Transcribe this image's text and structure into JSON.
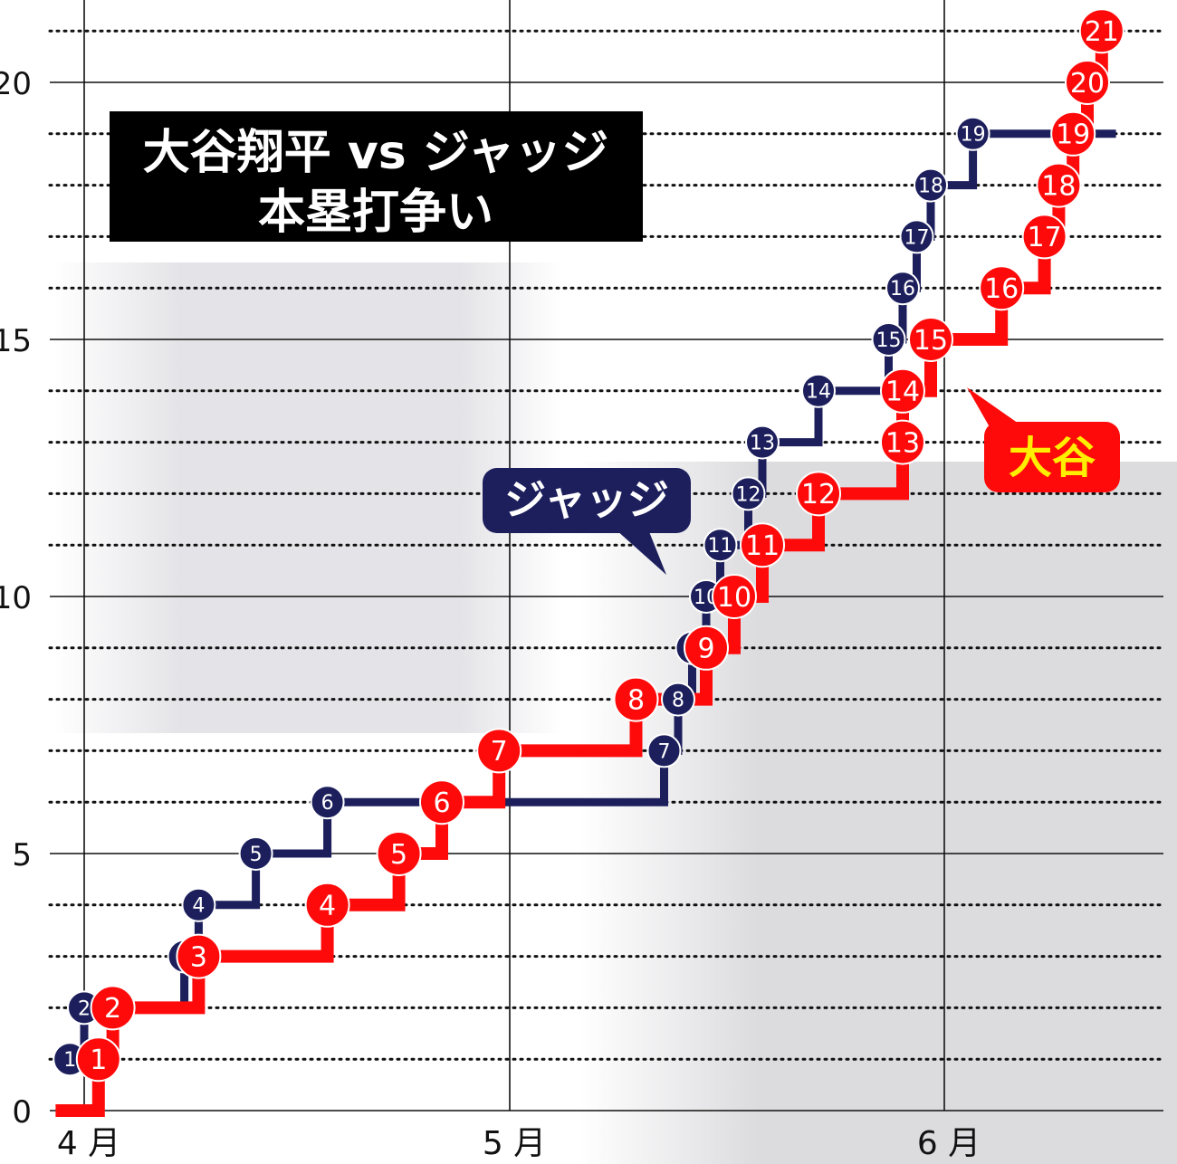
{
  "title": {
    "line1": "大谷翔平 vs ジャッジ",
    "line2": "本塁打争い"
  },
  "chart_data": {
    "type": "line",
    "step": true,
    "title": "大谷翔平 vs ジャッジ 本塁打争い",
    "xlabel": "",
    "ylabel": "",
    "x_ticks": [
      "4 月",
      "5 月",
      "6 月"
    ],
    "y_ticks": [
      "0",
      "5",
      "10",
      "15",
      "20"
    ],
    "ylim": [
      0,
      21
    ],
    "grid": "major solid, minor dotted",
    "series": [
      {
        "name": "ジャッジ",
        "color": "#1c1f5c",
        "points": [
          {
            "date": "03-31",
            "value": 1,
            "label": "1"
          },
          {
            "date": "04-01",
            "value": 2,
            "label": "2"
          },
          {
            "date": "04-08",
            "value": 3,
            "label": "3"
          },
          {
            "date": "04-09",
            "value": 4,
            "label": "4"
          },
          {
            "date": "04-13",
            "value": 5,
            "label": "5"
          },
          {
            "date": "04-18",
            "value": 6,
            "label": "6"
          },
          {
            "date": "05-12",
            "value": 7,
            "label": "7"
          },
          {
            "date": "05-13",
            "value": 8,
            "label": "8"
          },
          {
            "date": "05-14",
            "value": 9,
            "label": "9"
          },
          {
            "date": "05-15",
            "value": 10,
            "label": "10"
          },
          {
            "date": "05-16",
            "value": 11,
            "label": "11"
          },
          {
            "date": "05-18",
            "value": 12,
            "label": "12"
          },
          {
            "date": "05-19",
            "value": 13,
            "label": "13"
          },
          {
            "date": "05-23",
            "value": 14,
            "label": "14"
          },
          {
            "date": "05-28",
            "value": 15,
            "label": "15"
          },
          {
            "date": "05-29",
            "value": 16,
            "label": "16"
          },
          {
            "date": "05-30",
            "value": 17,
            "label": "17"
          },
          {
            "date": "05-31",
            "value": 18,
            "label": "18"
          },
          {
            "date": "06-03",
            "value": 19,
            "label": "19"
          },
          {
            "date": "06-13",
            "value": 19,
            "label": ""
          }
        ]
      },
      {
        "name": "大谷",
        "color": "#ff0a0a",
        "points": [
          {
            "date": "03-30",
            "value": 0,
            "label": ""
          },
          {
            "date": "04-02",
            "value": 1,
            "label": "1"
          },
          {
            "date": "04-03",
            "value": 2,
            "label": "2"
          },
          {
            "date": "04-09",
            "value": 3,
            "label": "3"
          },
          {
            "date": "04-18",
            "value": 4,
            "label": "4"
          },
          {
            "date": "04-23",
            "value": 5,
            "label": "5"
          },
          {
            "date": "04-26",
            "value": 6,
            "label": "6"
          },
          {
            "date": "04-30",
            "value": 7,
            "label": "7"
          },
          {
            "date": "05-10",
            "value": 8,
            "label": "8"
          },
          {
            "date": "05-15",
            "value": 9,
            "label": "9"
          },
          {
            "date": "05-17",
            "value": 10,
            "label": "10"
          },
          {
            "date": "05-19",
            "value": 11,
            "label": "11"
          },
          {
            "date": "05-23",
            "value": 12,
            "label": "12"
          },
          {
            "date": "05-29",
            "value": 13,
            "label": "13"
          },
          {
            "date": "05-29",
            "value": 14,
            "label": "14"
          },
          {
            "date": "05-31",
            "value": 15,
            "label": "15"
          },
          {
            "date": "06-05",
            "value": 16,
            "label": "16"
          },
          {
            "date": "06-08",
            "value": 17,
            "label": "17"
          },
          {
            "date": "06-09",
            "value": 18,
            "label": "18"
          },
          {
            "date": "06-10",
            "value": 19,
            "label": "19"
          },
          {
            "date": "06-11",
            "value": 20,
            "label": "20"
          },
          {
            "date": "06-12",
            "value": 21,
            "label": "21"
          }
        ]
      }
    ],
    "annotations": [
      {
        "series": "ジャッジ",
        "text": "ジャッジ"
      },
      {
        "series": "大谷",
        "text": "大谷"
      }
    ]
  }
}
